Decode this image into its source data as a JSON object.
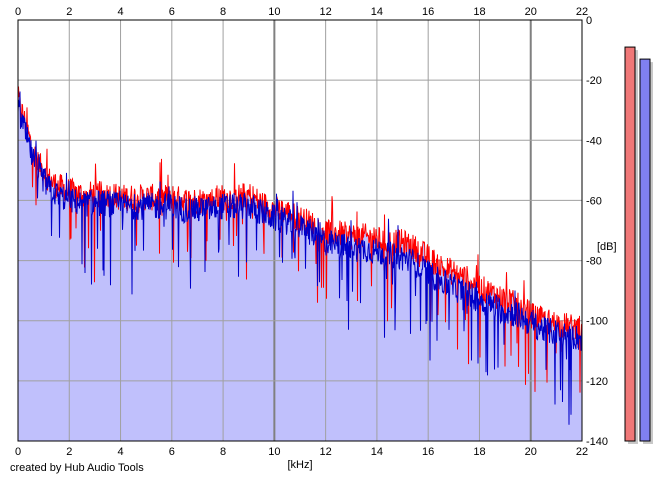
{
  "credit": "created by Hub Audio Tools",
  "chart_data": {
    "type": "area",
    "xlabel": "[kHz]",
    "ylabel": "[dB]",
    "xlim": [
      0,
      22
    ],
    "ylim": [
      -140,
      0
    ],
    "x_ticks": [
      0,
      2,
      4,
      6,
      8,
      10,
      12,
      14,
      16,
      18,
      20,
      22
    ],
    "y_ticks": [
      0,
      -20,
      -40,
      -60,
      -80,
      -100,
      -120,
      -140
    ],
    "grid": true,
    "colors": {
      "background": "#ffffff",
      "plot_area": "#ffffff",
      "fill": "#c0c0fc",
      "grid": "#a0a0a0",
      "grid_major": "#808080",
      "red": "#ff0000",
      "blue": "#0000c8",
      "meter_left": "#f07878",
      "meter_right": "#8080f0"
    },
    "series": [
      {
        "color": "red",
        "points": [
          [
            0,
            -26
          ],
          [
            0.2,
            -32
          ],
          [
            0.4,
            -38
          ],
          [
            0.6,
            -44
          ],
          [
            0.8,
            -48
          ],
          [
            1.0,
            -50
          ],
          [
            1.2,
            -53
          ],
          [
            1.5,
            -55
          ],
          [
            2.0,
            -57
          ],
          [
            2.5,
            -58
          ],
          [
            3.0,
            -58
          ],
          [
            3.5,
            -58
          ],
          [
            4.0,
            -59
          ],
          [
            4.5,
            -59
          ],
          [
            5.0,
            -59
          ],
          [
            5.5,
            -59
          ],
          [
            6.0,
            -59
          ],
          [
            6.5,
            -60
          ],
          [
            7.0,
            -60
          ],
          [
            7.5,
            -60
          ],
          [
            8.0,
            -59
          ],
          [
            8.5,
            -59
          ],
          [
            9.0,
            -58
          ],
          [
            9.5,
            -61
          ],
          [
            10.0,
            -63
          ],
          [
            10.5,
            -64
          ],
          [
            11.0,
            -66
          ],
          [
            11.5,
            -68
          ],
          [
            12.0,
            -70
          ],
          [
            12.5,
            -71
          ],
          [
            13.0,
            -72
          ],
          [
            13.5,
            -72
          ],
          [
            14.0,
            -73
          ],
          [
            14.5,
            -74
          ],
          [
            15.0,
            -74
          ],
          [
            15.5,
            -76
          ],
          [
            16.0,
            -79
          ],
          [
            16.5,
            -82
          ],
          [
            17.0,
            -84
          ],
          [
            17.5,
            -86
          ],
          [
            18.0,
            -89
          ],
          [
            18.5,
            -91
          ],
          [
            19.0,
            -93
          ],
          [
            19.5,
            -95
          ],
          [
            20.0,
            -98
          ],
          [
            20.5,
            -100
          ],
          [
            21.0,
            -101
          ],
          [
            21.5,
            -102
          ],
          [
            22.0,
            -103
          ]
        ]
      },
      {
        "color": "blue",
        "points": [
          [
            0,
            -30
          ],
          [
            0.2,
            -35
          ],
          [
            0.4,
            -41
          ],
          [
            0.6,
            -47
          ],
          [
            0.8,
            -51
          ],
          [
            1.0,
            -53
          ],
          [
            1.2,
            -56
          ],
          [
            1.5,
            -58
          ],
          [
            2.0,
            -60
          ],
          [
            2.5,
            -61
          ],
          [
            3.0,
            -61
          ],
          [
            3.5,
            -61
          ],
          [
            4.0,
            -62
          ],
          [
            4.5,
            -62
          ],
          [
            5.0,
            -62
          ],
          [
            5.5,
            -62
          ],
          [
            6.0,
            -62
          ],
          [
            6.5,
            -63
          ],
          [
            7.0,
            -63
          ],
          [
            7.5,
            -63
          ],
          [
            8.0,
            -62
          ],
          [
            8.5,
            -62
          ],
          [
            9.0,
            -62
          ],
          [
            9.5,
            -64
          ],
          [
            10.0,
            -66
          ],
          [
            10.5,
            -67
          ],
          [
            11.0,
            -69
          ],
          [
            11.5,
            -71
          ],
          [
            12.0,
            -74
          ],
          [
            12.5,
            -75
          ],
          [
            13.0,
            -76
          ],
          [
            13.5,
            -76
          ],
          [
            14.0,
            -77
          ],
          [
            14.5,
            -78
          ],
          [
            15.0,
            -79
          ],
          [
            15.5,
            -81
          ],
          [
            16.0,
            -84
          ],
          [
            16.5,
            -87
          ],
          [
            17.0,
            -89
          ],
          [
            17.5,
            -91
          ],
          [
            18.0,
            -93
          ],
          [
            18.5,
            -95
          ],
          [
            19.0,
            -97
          ],
          [
            19.5,
            -98
          ],
          [
            20.0,
            -101
          ],
          [
            20.5,
            -103
          ],
          [
            21.0,
            -104
          ],
          [
            21.5,
            -105
          ],
          [
            22.0,
            -106
          ]
        ]
      }
    ],
    "meters": [
      {
        "color": "meter_left",
        "level_db": -9
      },
      {
        "color": "meter_right",
        "level_db": -13
      }
    ]
  }
}
